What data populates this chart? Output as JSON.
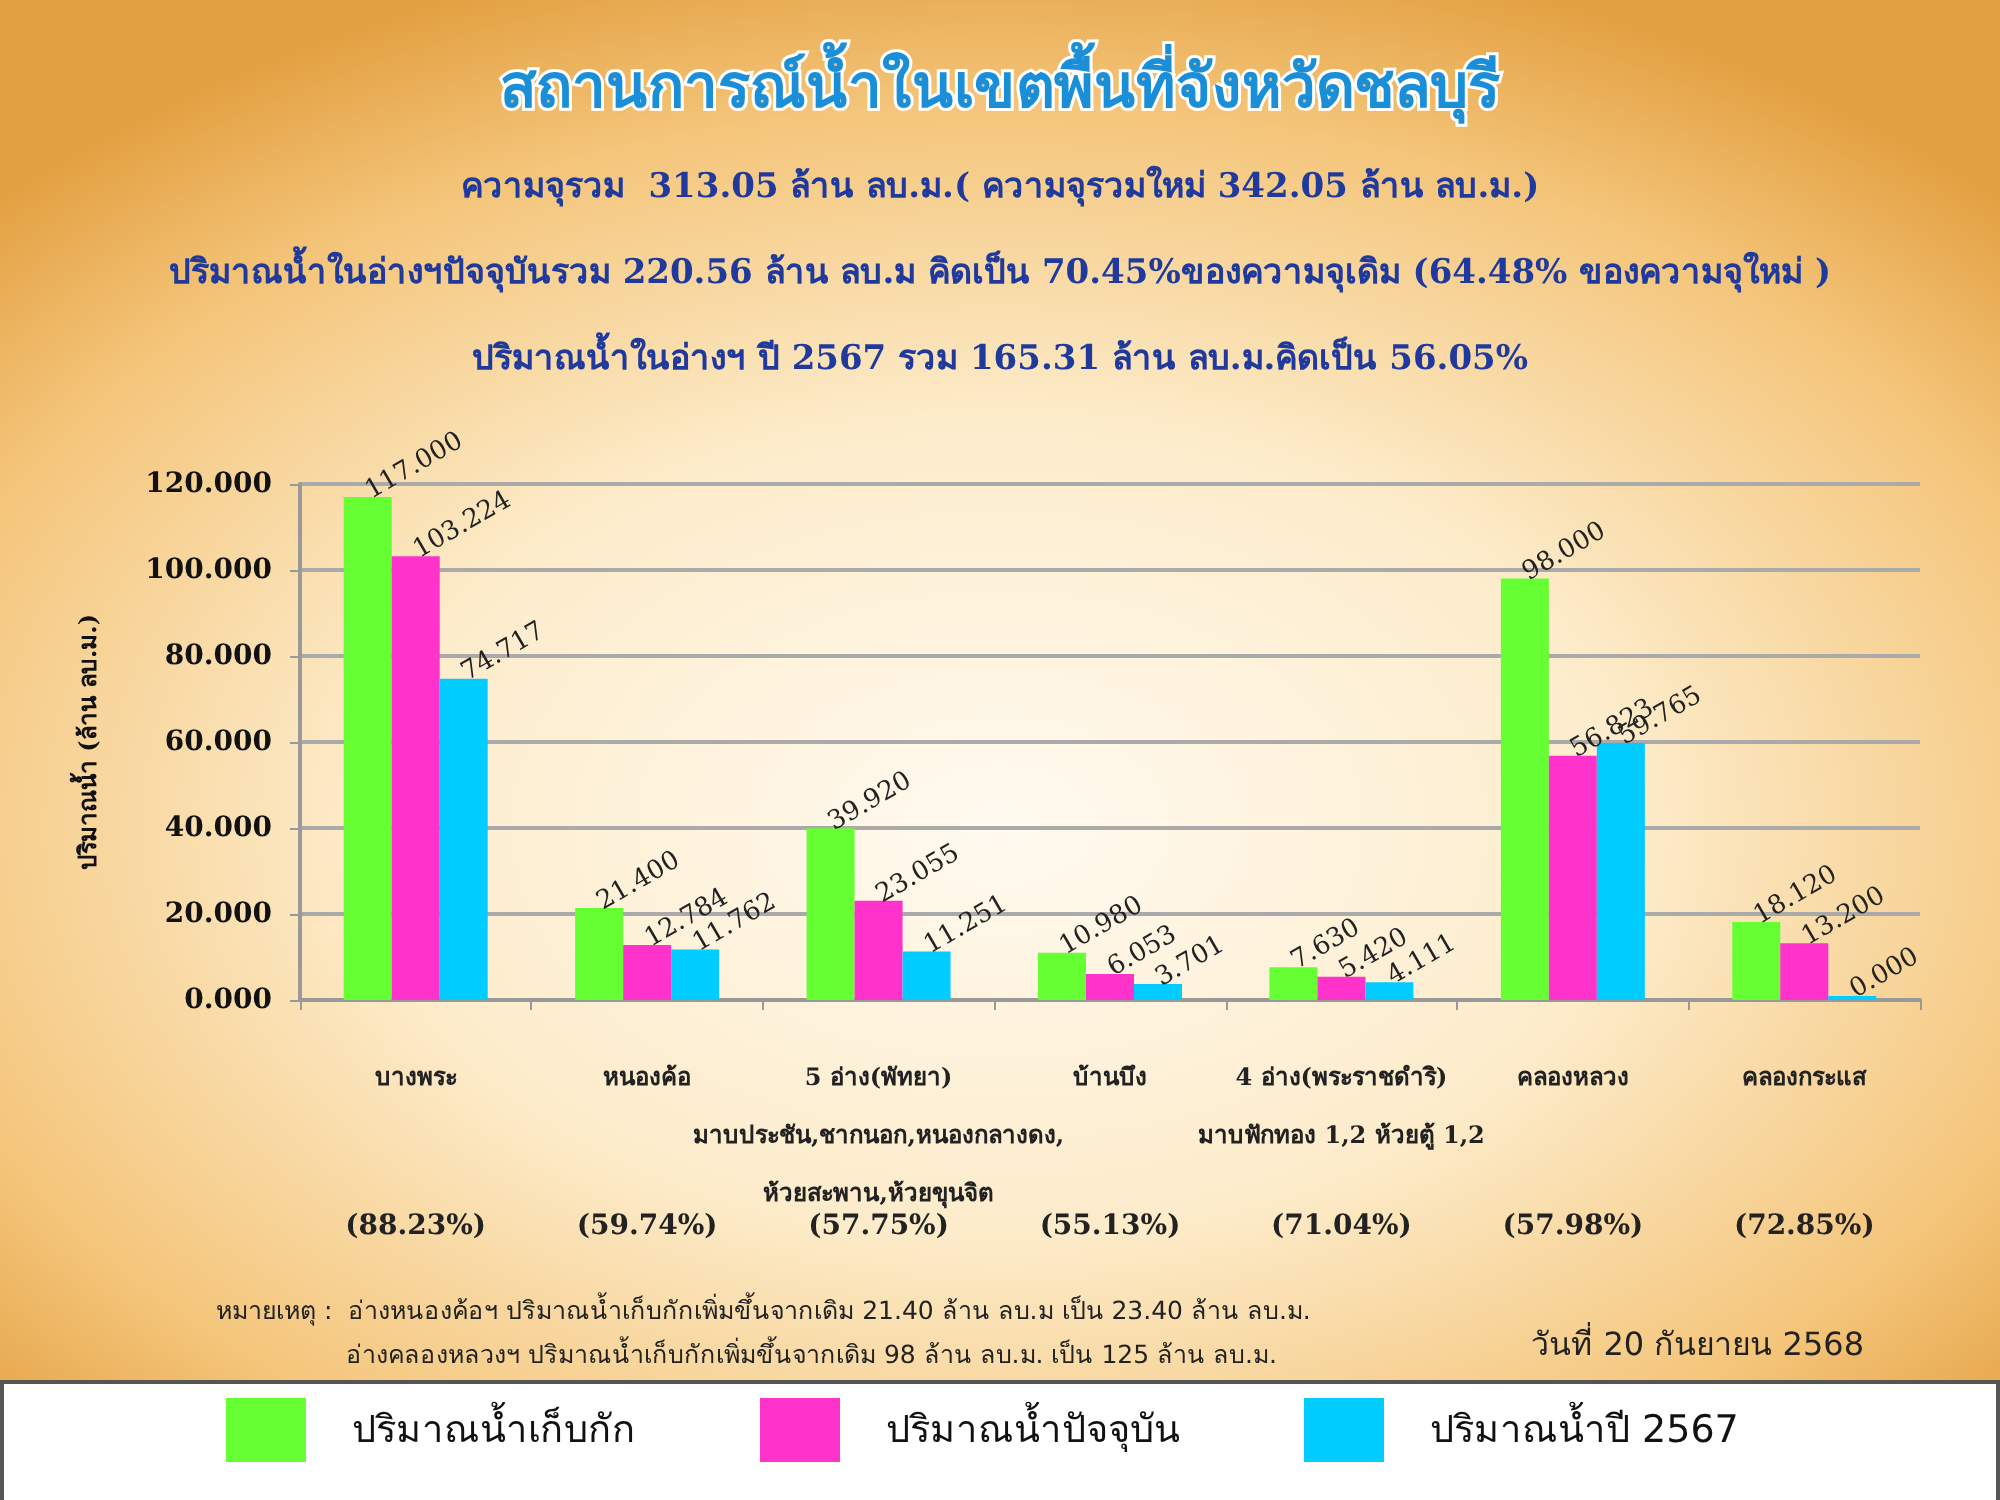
{
  "chart_data": {
    "type": "bar",
    "title": "สถานการณ์น้ำในเขตพื้นที่จังหวัดชลบุรี",
    "subtitle": "ความจุรวม  313.05 ล้าน ลบ.ม.( ความจุรวมใหม่ 342.05 ล้าน ลบ.ม.)\nปริมาณน้ำในอ่างฯปัจจุบันรวม 220.56 ล้าน ลบ.ม คิดเป็น 70.45%ของความจุเดิม (64.48% ของความจุใหม่ )\nปริมาณน้ำในอ่างฯ ปี 2567 รวม 165.31 ล้าน ลบ.ม.คิดเป็น 56.05%",
    "ylabel": "ปริมาณน้ำ (ล้าน ลบ.ม.)",
    "categories": [
      "บางพระ",
      "หนองค้อ",
      "5 อ่าง(พัทยา)\nมาบประชัน,ชากนอก,หนองกลางดง,\nห้วยสะพาน,ห้วยขุนจิต",
      "บ้านบึง",
      "4 อ่าง(พระราชดำริ)\nมาบฟักทอง 1,2 ห้วยตู้ 1,2",
      "คลองหลวง",
      "คลองกระแส"
    ],
    "series": [
      {
        "name": "ปริมาณน้ำเก็บกัก",
        "color": "#66ff33",
        "values": [
          117,
          21.4,
          39.92,
          10.98,
          7.63,
          98,
          18.12
        ],
        "value_labels": [
          "117.000",
          "21.400",
          "39.920",
          "10.980",
          "7.630",
          "98.000",
          "18.120"
        ]
      },
      {
        "name": "ปริมาณน้ำปัจจุบัน",
        "color": "#ff33cc",
        "values": [
          103.224,
          12.784,
          23.055,
          6.053,
          5.42,
          56.823,
          13.2
        ],
        "value_labels": [
          "103.224",
          "12.784",
          "23.055",
          "6.053",
          "5.420",
          "56.823",
          "13.200"
        ]
      },
      {
        "name": "ปริมาณน้ำปี 2567",
        "color": "#00ccff",
        "values": [
          74.717,
          11.762,
          11.251,
          3.701,
          4.111,
          59.765,
          0
        ],
        "value_labels": [
          "74.717",
          "11.762",
          "11.251",
          "3.701",
          "4.111",
          "59.765",
          "0.000"
        ]
      }
    ],
    "ylim": [
      0,
      120
    ],
    "yticks": [
      {
        "value": 0,
        "label": "0.000"
      },
      {
        "value": 20,
        "label": "20.000"
      },
      {
        "value": 40,
        "label": "40.000"
      },
      {
        "value": 60,
        "label": "60.000"
      },
      {
        "value": 80,
        "label": "80.000"
      },
      {
        "value": 100,
        "label": "100.000"
      },
      {
        "value": 120,
        "label": "120.000"
      }
    ],
    "grid": "y",
    "legend": "bottom",
    "annotations": [
      "(88.23%)",
      "(59.74%)",
      "(57.75%)",
      "(55.13%)",
      "(71.04%)",
      "(57.98%)",
      "(72.85%)",
      "หมายเหตุ :  อ่างหนองค้อฯ ปริมาณน้ำเก็บกักเพิ่มขึ้นจากเดิม 21.40 ล้าน ลบ.ม เป็น 23.40 ล้าน ลบ.ม.",
      "อ่างคลองหลวงฯ ปริมาณน้ำเก็บกักเพิ่มขึ้นจากเดิม 98 ล้าน ลบ.ม. เป็น 125 ล้าน ลบ.ม.",
      "วันที่ 20 กันยายน 2568"
    ]
  }
}
